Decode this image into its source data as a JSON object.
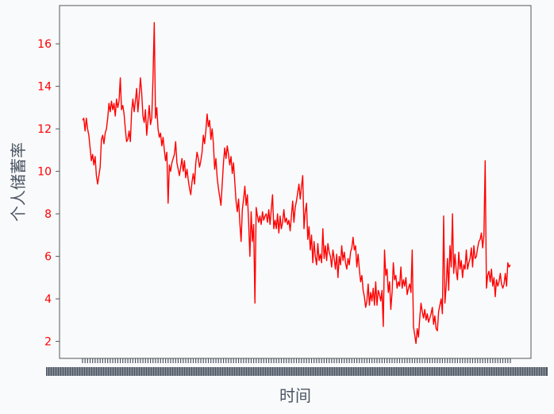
{
  "chart_data": {
    "type": "line",
    "title": "",
    "xlabel": "时间",
    "ylabel": "个人储蓄率",
    "ylim": [
      1.2,
      17.8
    ],
    "yticks": [
      2,
      4,
      6,
      8,
      10,
      12,
      14,
      16
    ],
    "grid": false,
    "legend": "none",
    "x_tick_labels": "dense, illegible (overlapping date labels)",
    "series": [
      {
        "color": "#ff0000",
        "values": [
          12.4,
          12.5,
          11.9,
          12.5,
          12.0,
          11.7,
          11.1,
          10.5,
          10.8,
          10.3,
          10.7,
          9.8,
          9.4,
          9.8,
          10.2,
          11.5,
          11.7,
          11.3,
          11.8,
          12.0,
          12.5,
          13.2,
          12.8,
          13.3,
          12.9,
          13.2,
          12.6,
          13.4,
          13.0,
          13.3,
          14.4,
          12.9,
          13.1,
          12.7,
          12.0,
          11.4,
          11.5,
          11.9,
          11.4,
          12.8,
          13.4,
          12.8,
          13.3,
          13.9,
          12.8,
          13.5,
          14.4,
          13.7,
          12.6,
          12.3,
          12.9,
          11.7,
          12.4,
          13.1,
          12.2,
          12.5,
          14.4,
          17.0,
          12.5,
          13.0,
          12.0,
          11.6,
          11.8,
          11.2,
          11.6,
          11.0,
          10.5,
          10.9,
          8.5,
          10.3,
          10.0,
          10.4,
          10.6,
          10.8,
          11.4,
          10.4,
          10.1,
          9.8,
          10.2,
          10.6,
          10.0,
          10.5,
          9.7,
          10.1,
          9.6,
          9.2,
          8.9,
          9.5,
          9.9,
          9.4,
          10.4,
          10.9,
          10.6,
          10.2,
          10.5,
          10.9,
          11.7,
          11.3,
          11.9,
          12.7,
          12.1,
          12.4,
          11.5,
          12.0,
          11.3,
          10.1,
          10.6,
          9.7,
          9.2,
          8.8,
          8.4,
          9.4,
          10.4,
          11.1,
          10.6,
          11.2,
          10.8,
          10.3,
          10.7,
          9.9,
          10.4,
          9.5,
          8.6,
          8.1,
          8.7,
          7.6,
          6.7,
          8.2,
          8.7,
          9.3,
          8.4,
          8.9,
          7.6,
          6.0,
          8.1,
          6.7,
          7.5,
          3.8,
          8.3,
          7.9,
          7.6,
          7.9,
          7.5,
          8.1,
          7.7,
          7.9,
          8.0,
          7.6,
          8.2,
          7.5,
          8.2,
          8.9,
          7.3,
          7.7,
          7.3,
          8.0,
          7.1,
          7.9,
          7.3,
          7.6,
          8.2,
          7.6,
          7.8,
          7.5,
          7.7,
          7.2,
          7.9,
          8.6,
          7.6,
          8.3,
          8.6,
          9.0,
          9.4,
          8.7,
          9.3,
          9.8,
          7.3,
          8.1,
          8.5,
          6.8,
          7.4,
          6.3,
          7.0,
          5.7,
          6.7,
          6.0,
          5.6,
          6.6,
          5.8,
          6.1,
          5.7,
          7.3,
          5.9,
          6.5,
          5.8,
          6.6,
          6.2,
          6.0,
          5.5,
          6.3,
          5.9,
          5.4,
          6.1,
          5.0,
          6.0,
          5.6,
          6.5,
          5.8,
          6.2,
          5.7,
          5.4,
          5.9,
          5.6,
          6.2,
          6.4,
          6.9,
          6.3,
          6.5,
          5.5,
          6.1,
          5.4,
          4.8,
          5.1,
          4.4,
          4.1,
          3.6,
          3.9,
          4.7,
          3.7,
          4.3,
          3.9,
          4.5,
          3.7,
          4.8,
          3.7,
          4.4,
          4.2,
          3.9,
          4.4,
          2.7,
          6.3,
          5.1,
          5.4,
          4.3,
          4.8,
          3.5,
          4.3,
          5.7,
          4.9,
          5.1,
          4.5,
          4.8,
          4.6,
          5.5,
          4.5,
          4.9,
          4.6,
          5.0,
          4.2,
          4.5,
          4.7,
          4.3,
          6.3,
          2.7,
          2.3,
          1.9,
          2.6,
          2.2,
          3.1,
          3.8,
          3.4,
          3.1,
          3.5,
          3.0,
          3.3,
          2.9,
          3.1,
          3.3,
          3.6,
          2.8,
          3.2,
          2.6,
          2.5,
          3.4,
          3.7,
          4.0,
          3.3,
          7.9,
          3.8,
          4.6,
          5.9,
          4.4,
          6.5,
          5.5,
          8.0,
          5.2,
          6.1,
          5.3,
          4.9,
          6.2,
          5.4,
          5.8,
          5.0,
          5.6,
          5.4,
          6.3,
          5.4,
          5.7,
          5.9,
          6.4,
          5.5,
          6.5,
          5.9,
          6.0,
          6.4,
          6.7,
          6.8,
          7.1,
          6.4,
          7.0,
          10.5,
          4.5,
          5.1,
          5.3,
          4.8,
          5.4,
          4.6,
          5.0,
          4.1,
          4.9,
          4.6,
          4.8,
          5.2,
          4.7,
          4.5,
          4.7,
          5.2,
          4.6,
          5.7,
          5.5,
          5.6
        ]
      }
    ]
  }
}
